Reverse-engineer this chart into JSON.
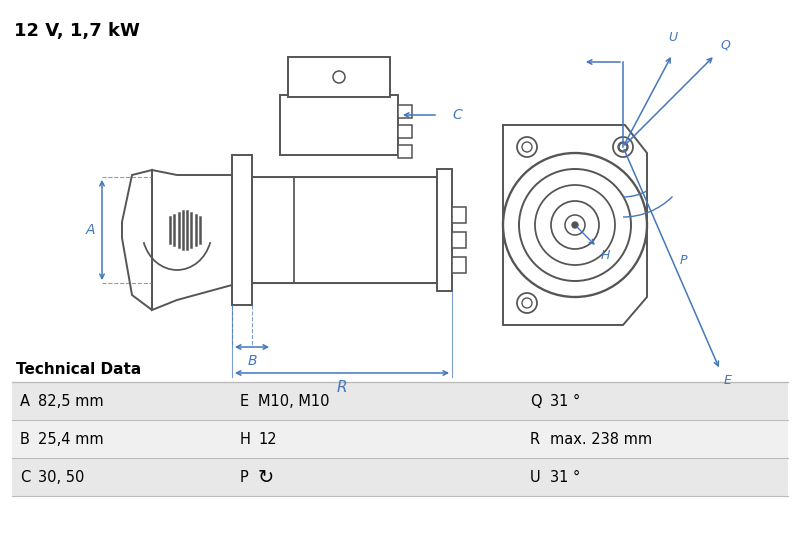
{
  "title": "12 V, 1,7 kW",
  "bg_color": "#ffffff",
  "diagram_color": "#555555",
  "blue_color": "#4477bb",
  "table_header": "Technical Data",
  "table_rows": [
    [
      "A",
      "82,5 mm",
      "E",
      "M10, M10",
      "Q",
      "31 °"
    ],
    [
      "B",
      "25,4 mm",
      "H",
      "12",
      "R",
      "max. 238 mm"
    ],
    [
      "C",
      "30, 50",
      "P",
      "↻",
      "U",
      "31 °"
    ]
  ],
  "table_bg_odd": "#e8e8e8",
  "table_bg_even": "#f0f0f0",
  "table_border": "#bbbbbb"
}
